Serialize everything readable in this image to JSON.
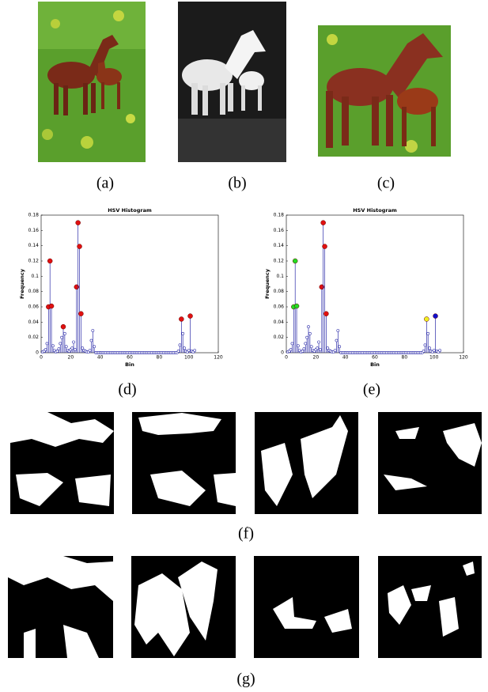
{
  "captions": [
    "(a)",
    "(b)",
    "(c)",
    "(d)",
    "(e)",
    "(f)",
    "(g)"
  ],
  "chart_data": [
    {
      "type": "stem",
      "title": "HSV Histogram",
      "x_label": "Bin",
      "y_label": "Frequency",
      "x": [
        1,
        2,
        3,
        4,
        5,
        6,
        7,
        8,
        9,
        10,
        11,
        12,
        13,
        14,
        15,
        16,
        17,
        18,
        19,
        20,
        21,
        22,
        23,
        24,
        25,
        26,
        27,
        28,
        29,
        30,
        31,
        32,
        33,
        34,
        35,
        36,
        37,
        38,
        39,
        40,
        41,
        42,
        43,
        44,
        45,
        46,
        47,
        48,
        49,
        50,
        51,
        52,
        53,
        54,
        55,
        56,
        57,
        58,
        59,
        60,
        61,
        62,
        63,
        64,
        65,
        66,
        67,
        68,
        69,
        70,
        71,
        72,
        73,
        74,
        75,
        76,
        77,
        78,
        79,
        80,
        81,
        82,
        83,
        84,
        85,
        86,
        87,
        88,
        89,
        90,
        91,
        92,
        93,
        94,
        95,
        96,
        97,
        98,
        99,
        100,
        101,
        102,
        103,
        104
      ],
      "values": [
        0.001,
        0.002,
        0.004,
        0.012,
        0.06,
        0.12,
        0.061,
        0.009,
        0.003,
        0.001,
        0.002,
        0.005,
        0.012,
        0.02,
        0.034,
        0.025,
        0.008,
        0.003,
        0.002,
        0.004,
        0.006,
        0.014,
        0.004,
        0.086,
        0.17,
        0.139,
        0.051,
        0.006,
        0.003,
        0.002,
        0.001,
        0.001,
        0.003,
        0.016,
        0.029,
        0.008,
        0,
        0,
        0,
        0,
        0,
        0,
        0,
        0,
        0,
        0,
        0,
        0,
        0,
        0,
        0,
        0,
        0,
        0,
        0,
        0,
        0,
        0,
        0,
        0,
        0,
        0,
        0,
        0,
        0,
        0,
        0,
        0,
        0,
        0,
        0,
        0,
        0,
        0,
        0,
        0,
        0,
        0,
        0,
        0,
        0,
        0,
        0,
        0,
        0,
        0,
        0,
        0,
        0,
        0,
        0,
        0,
        0.002,
        0.01,
        0.044,
        0.025,
        0.006,
        0.002,
        0.001,
        0.003,
        0.048,
        0.002,
        0.001,
        0.003
      ],
      "color": "#2a2aa8",
      "marker_colors": [
        null,
        null,
        null,
        null,
        "#e01010",
        "#e01010",
        "#e01010",
        null,
        null,
        null,
        null,
        null,
        null,
        null,
        "#e01010",
        null,
        null,
        null,
        null,
        null,
        null,
        null,
        null,
        "#e01010",
        "#e01010",
        "#e01010",
        "#e01010",
        null,
        null,
        null,
        null,
        null,
        null,
        null,
        null,
        null,
        null,
        null,
        null,
        null,
        null,
        null,
        null,
        null,
        null,
        null,
        null,
        null,
        null,
        null,
        null,
        null,
        null,
        null,
        null,
        null,
        null,
        null,
        null,
        null,
        null,
        null,
        null,
        null,
        null,
        null,
        null,
        null,
        null,
        null,
        null,
        null,
        null,
        null,
        null,
        null,
        null,
        null,
        null,
        null,
        null,
        null,
        null,
        null,
        null,
        null,
        null,
        null,
        null,
        null,
        null,
        null,
        null,
        null,
        "#e01010",
        null,
        null,
        null,
        null,
        null,
        "#e01010",
        null,
        null,
        null
      ],
      "xlim": [
        0,
        120
      ],
      "xticks": [
        0,
        20,
        40,
        60,
        80,
        100,
        120
      ],
      "ylim": [
        0,
        0.18
      ],
      "yticks": [
        0,
        0.02,
        0.04,
        0.06,
        0.08,
        0.1,
        0.12,
        0.14,
        0.16,
        0.18
      ]
    },
    {
      "type": "stem",
      "title": "HSV Histogram",
      "x_label": "Bin",
      "y_label": "Frequency",
      "x": [
        1,
        2,
        3,
        4,
        5,
        6,
        7,
        8,
        9,
        10,
        11,
        12,
        13,
        14,
        15,
        16,
        17,
        18,
        19,
        20,
        21,
        22,
        23,
        24,
        25,
        26,
        27,
        28,
        29,
        30,
        31,
        32,
        33,
        34,
        35,
        36,
        37,
        38,
        39,
        40,
        41,
        42,
        43,
        44,
        45,
        46,
        47,
        48,
        49,
        50,
        51,
        52,
        53,
        54,
        55,
        56,
        57,
        58,
        59,
        60,
        61,
        62,
        63,
        64,
        65,
        66,
        67,
        68,
        69,
        70,
        71,
        72,
        73,
        74,
        75,
        76,
        77,
        78,
        79,
        80,
        81,
        82,
        83,
        84,
        85,
        86,
        87,
        88,
        89,
        90,
        91,
        92,
        93,
        94,
        95,
        96,
        97,
        98,
        99,
        100,
        101,
        102,
        103,
        104
      ],
      "values": [
        0.001,
        0.002,
        0.004,
        0.012,
        0.06,
        0.12,
        0.061,
        0.009,
        0.003,
        0.001,
        0.002,
        0.005,
        0.012,
        0.02,
        0.034,
        0.025,
        0.008,
        0.003,
        0.002,
        0.004,
        0.006,
        0.014,
        0.004,
        0.086,
        0.17,
        0.139,
        0.051,
        0.006,
        0.003,
        0.002,
        0.001,
        0.001,
        0.003,
        0.016,
        0.029,
        0.008,
        0,
        0,
        0,
        0,
        0,
        0,
        0,
        0,
        0,
        0,
        0,
        0,
        0,
        0,
        0,
        0,
        0,
        0,
        0,
        0,
        0,
        0,
        0,
        0,
        0,
        0,
        0,
        0,
        0,
        0,
        0,
        0,
        0,
        0,
        0,
        0,
        0,
        0,
        0,
        0,
        0,
        0,
        0,
        0,
        0,
        0,
        0,
        0,
        0,
        0,
        0,
        0,
        0,
        0,
        0,
        0,
        0.002,
        0.01,
        0.044,
        0.025,
        0.006,
        0.002,
        0.001,
        0.003,
        0.048,
        0.002,
        0.001,
        0.003
      ],
      "color": "#2a2aa8",
      "marker_colors": [
        null,
        null,
        null,
        null,
        "#22dd22",
        "#22dd22",
        "#22dd22",
        null,
        null,
        null,
        null,
        null,
        null,
        null,
        null,
        null,
        null,
        null,
        null,
        null,
        null,
        null,
        null,
        "#e01010",
        "#e01010",
        "#e01010",
        "#e01010",
        null,
        null,
        null,
        null,
        null,
        null,
        null,
        null,
        null,
        null,
        null,
        null,
        null,
        null,
        null,
        null,
        null,
        null,
        null,
        null,
        null,
        null,
        null,
        null,
        null,
        null,
        null,
        null,
        null,
        null,
        null,
        null,
        null,
        null,
        null,
        null,
        null,
        null,
        null,
        null,
        null,
        null,
        null,
        null,
        null,
        null,
        null,
        null,
        null,
        null,
        null,
        null,
        null,
        null,
        null,
        null,
        null,
        null,
        null,
        null,
        null,
        null,
        null,
        null,
        null,
        null,
        null,
        "#f0f020",
        null,
        null,
        null,
        null,
        null,
        "#1010cc",
        null,
        null,
        null
      ],
      "xlim": [
        0,
        120
      ],
      "xticks": [
        0,
        20,
        40,
        60,
        80,
        100,
        120
      ],
      "ylim": [
        0,
        0.18
      ],
      "yticks": [
        0,
        0.02,
        0.04,
        0.06,
        0.08,
        0.1,
        0.12,
        0.14,
        0.16,
        0.18
      ]
    }
  ]
}
